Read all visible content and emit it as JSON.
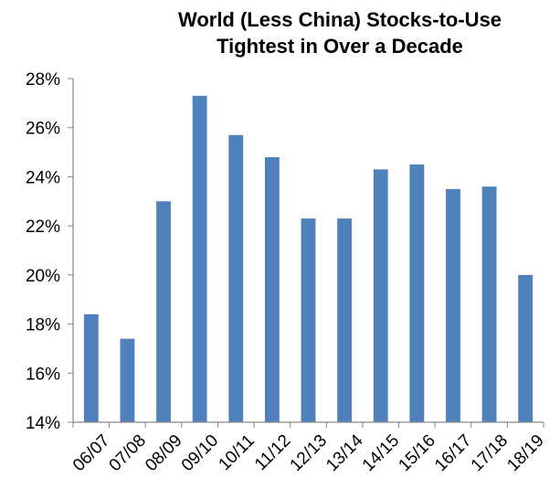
{
  "chart_data": {
    "type": "bar",
    "title_lines": [
      "World (Less China) Stocks-to-Use",
      "Tightest in Over a Decade"
    ],
    "xlabel": "",
    "ylabel": "",
    "categories": [
      "06/07",
      "07/08",
      "08/09",
      "09/10",
      "10/11",
      "11/12",
      "12/13",
      "13/14",
      "14/15",
      "15/16",
      "16/17",
      "17/18",
      "18/19"
    ],
    "values": [
      18.4,
      17.4,
      23.0,
      27.3,
      25.7,
      24.8,
      22.3,
      22.3,
      24.3,
      24.5,
      23.5,
      23.6,
      20.0
    ],
    "ylim": [
      14,
      28
    ],
    "yticks": [
      14,
      16,
      18,
      20,
      22,
      24,
      26,
      28
    ],
    "ytick_labels": [
      "14%",
      "16%",
      "18%",
      "20%",
      "22%",
      "24%",
      "26%",
      "28%"
    ],
    "grid": false,
    "legend": "none",
    "colors": {
      "bar": "#4F81BD",
      "axis": "#868686",
      "text": "#000000"
    }
  }
}
